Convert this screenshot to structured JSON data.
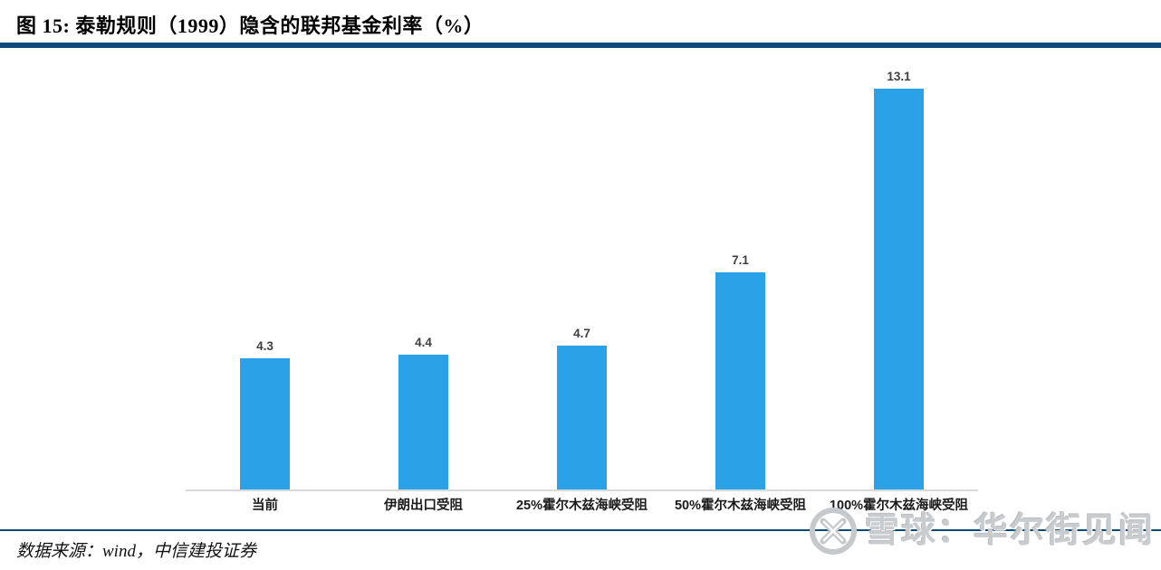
{
  "header": {
    "title": "图 15: 泰勒规则（1999）隐含的联邦基金利率（%）"
  },
  "chart_data": {
    "type": "bar",
    "title": "泰勒规则（1999）隐含的联邦基金利率（%）",
    "categories": [
      "当前",
      "伊朗出口受阻",
      "25%霍尔木兹海峡受阻",
      "50%霍尔木兹海峡受阻",
      "100%霍尔木兹海峡受阻"
    ],
    "values": [
      4.3,
      4.4,
      4.7,
      7.1,
      13.1
    ],
    "value_labels": [
      "4.3",
      "4.4",
      "4.7",
      "7.1",
      "13.1"
    ],
    "xlabel": "",
    "ylabel": "",
    "ylim": [
      0,
      16
    ],
    "grid": false,
    "legend": false,
    "y_axis_visible": false,
    "bar_color": "#2BA2E8"
  },
  "footer": {
    "source": "数据来源：wind，中信建投证券"
  },
  "watermark": {
    "text": "雪球：华尔街见闻",
    "logo": "xueqiu-logo"
  },
  "colors": {
    "bar": "#2BA2E8",
    "divider_navy": "#0E4A77",
    "axis_line": "#D9D9D9",
    "value_label": "#3F3F3F",
    "watermark_gray": "#C9CCCF"
  }
}
